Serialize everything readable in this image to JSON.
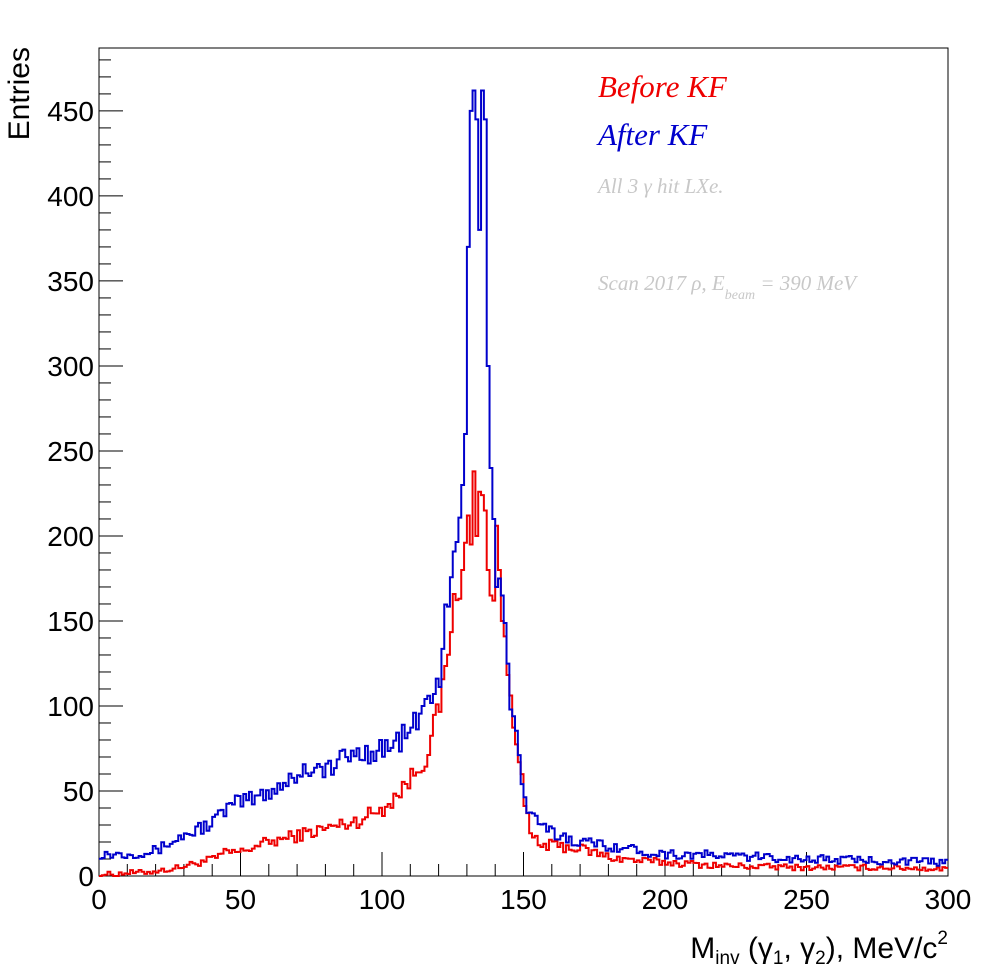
{
  "chart_data": {
    "type": "line",
    "style": "step-histogram",
    "xlabel_main": "M",
    "xlabel_sub": "inv",
    "xlabel_rest_1": " (γ",
    "xlabel_sub1": "1",
    "xlabel_rest_2": ", γ",
    "xlabel_sub2": "2",
    "xlabel_rest_3": "), MeV/c",
    "xlabel_sup": "2",
    "ylabel": "Entries",
    "xlim": [
      0,
      300
    ],
    "ylim": [
      0,
      487
    ],
    "x_ticks": [
      "0",
      "50",
      "100",
      "150",
      "200",
      "250",
      "300"
    ],
    "y_ticks": [
      "0",
      "50",
      "100",
      "150",
      "200",
      "250",
      "300",
      "350",
      "400",
      "450"
    ],
    "grid": false,
    "legend_placement": "top-right",
    "legend": [
      {
        "label": "Before KF",
        "color": "#ee0000"
      },
      {
        "label": "After KF",
        "color": "#0000cc"
      }
    ],
    "annotations": {
      "line1": "All 3  γ hit LXe.",
      "line2_pre": "Scan 2017  ρ, E",
      "line2_sub": "beam",
      "line2_post": " = 390 MeV",
      "color": "#c8c8c8"
    },
    "bin_width": 1,
    "series": [
      {
        "name": "Before KF",
        "color": "#ee0000",
        "x": [
          0,
          5,
          10,
          15,
          20,
          25,
          30,
          35,
          40,
          45,
          50,
          55,
          60,
          65,
          70,
          75,
          80,
          85,
          90,
          95,
          100,
          105,
          110,
          115,
          120,
          122,
          124,
          126,
          128,
          130,
          131,
          132,
          133,
          134,
          135,
          136,
          137,
          138,
          139,
          140,
          141,
          142,
          144,
          146,
          148,
          150,
          152,
          155,
          160,
          170,
          180,
          190,
          200,
          220,
          250,
          280,
          299
        ],
        "values": [
          1,
          1,
          2,
          2,
          3,
          4,
          6,
          8,
          10,
          14,
          14,
          18,
          20,
          22,
          24,
          26,
          28,
          30,
          32,
          36,
          40,
          48,
          58,
          70,
          100,
          120,
          150,
          165,
          180,
          212,
          195,
          238,
          200,
          226,
          224,
          215,
          180,
          165,
          162,
          206,
          180,
          150,
          120,
          95,
          72,
          40,
          25,
          18,
          18,
          16,
          11,
          9,
          8,
          6,
          5,
          5,
          4
        ]
      },
      {
        "name": "After KF",
        "color": "#0000cc",
        "x": [
          0,
          5,
          10,
          15,
          20,
          25,
          30,
          35,
          40,
          45,
          50,
          55,
          60,
          65,
          70,
          75,
          80,
          85,
          90,
          95,
          100,
          105,
          110,
          115,
          120,
          122,
          124,
          126,
          128,
          129,
          130,
          131,
          132,
          133,
          134,
          135,
          136,
          137,
          138,
          139,
          140,
          141,
          142,
          143,
          144,
          146,
          148,
          150,
          152,
          155,
          160,
          170,
          180,
          190,
          200,
          220,
          250,
          280,
          299
        ],
        "values": [
          13,
          13,
          13,
          14,
          15,
          20,
          24,
          28,
          32,
          40,
          44,
          46,
          50,
          55,
          60,
          65,
          62,
          68,
          72,
          73,
          75,
          79,
          86,
          100,
          118,
          150,
          170,
          200,
          230,
          260,
          370,
          450,
          462,
          445,
          380,
          462,
          445,
          300,
          240,
          210,
          170,
          175,
          165,
          155,
          120,
          90,
          70,
          45,
          35,
          30,
          25,
          20,
          18,
          15,
          13,
          12,
          10,
          9,
          8
        ]
      }
    ]
  }
}
